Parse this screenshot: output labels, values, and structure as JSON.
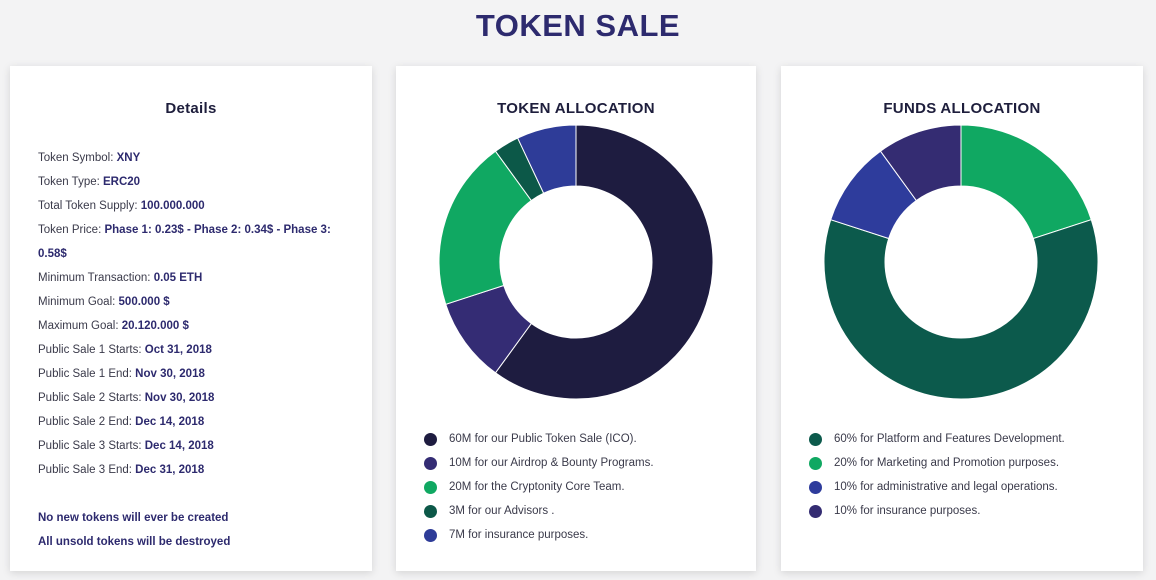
{
  "page": {
    "title": "TOKEN SALE"
  },
  "details": {
    "title": "Details",
    "rows": [
      {
        "label": "Token Symbol: ",
        "value": "XNY"
      },
      {
        "label": "Token Type: ",
        "value": "ERC20"
      },
      {
        "label": "Total Token Supply: ",
        "value": "100.000.000"
      },
      {
        "label": "Token Price: ",
        "value": "Phase 1: 0.23$ - Phase 2: 0.34$ - Phase 3: 0.58$"
      },
      {
        "label": "Minimum Transaction: ",
        "value": "0.05 ETH"
      },
      {
        "label": "Minimum Goal: ",
        "value": "500.000 $"
      },
      {
        "label": "Maximum Goal: ",
        "value": "20.120.000 $"
      },
      {
        "label": "Public Sale 1 Starts: ",
        "value": "Oct 31, 2018"
      },
      {
        "label": "Public Sale 1 End: ",
        "value": "Nov 30, 2018"
      },
      {
        "label": "Public Sale 2 Starts: ",
        "value": "Nov 30, 2018"
      },
      {
        "label": "Public Sale 2 End: ",
        "value": "Dec 14, 2018"
      },
      {
        "label": "Public Sale 3 Starts: ",
        "value": "Dec 14, 2018"
      },
      {
        "label": "Public Sale 3 End: ",
        "value": "Dec 31, 2018"
      }
    ],
    "notes": [
      "No new tokens will ever be created",
      "All unsold tokens will be destroyed"
    ]
  },
  "chart_data": [
    {
      "type": "pie",
      "title": "TOKEN ALLOCATION",
      "categories": [
        "60M for our Public Token Sale (ICO).",
        "10M for our Airdrop & Bounty Programs.",
        "20M for the Cryptonity Core Team.",
        "3M for our Advisors .",
        "7M for insurance purposes."
      ],
      "values": [
        60,
        10,
        20,
        3,
        7
      ],
      "colors": [
        "#1e1c40",
        "#342c74",
        "#10a862",
        "#0c5848",
        "#2e3c98"
      ],
      "donut": true,
      "legend": "bottom"
    },
    {
      "type": "pie",
      "title": "FUNDS ALLOCATION",
      "categories": [
        "60% for Platform and Features Development.",
        "20% for Marketing and Promotion purposes.",
        "10% for administrative and legal operations.",
        "10% for insurance purposes."
      ],
      "values": [
        60,
        20,
        10,
        10
      ],
      "draw_order": [
        1,
        0,
        2,
        3
      ],
      "colors": [
        "#0c5a4c",
        "#10a862",
        "#2e3c9c",
        "#342c72"
      ],
      "donut": true,
      "legend": "bottom"
    }
  ]
}
